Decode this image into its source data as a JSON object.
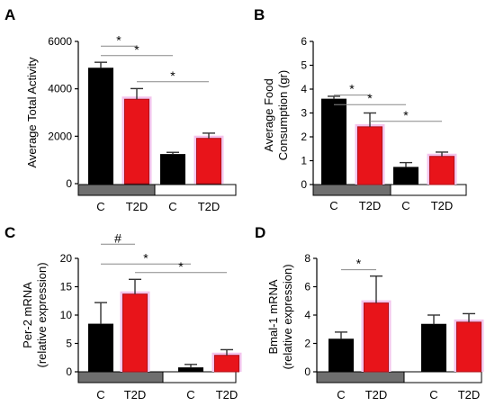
{
  "colors": {
    "control": "#000000",
    "t2d": "#e8141a",
    "t2d_stroke": "#b0101a",
    "t2d_halo": "#f3c4ec",
    "group_dark": "#6f6f6f",
    "group_light": "#ffffff"
  },
  "chart_data": [
    {
      "panel": "A",
      "type": "bar",
      "categories": [
        "C",
        "T2D",
        "C",
        "T2D"
      ],
      "values": [
        4870,
        3560,
        1230,
        1910
      ],
      "errors": [
        250,
        450,
        90,
        220
      ],
      "bar_colors": [
        "control",
        "t2d",
        "control",
        "t2d"
      ],
      "ylabel": [
        "Average Total Activity"
      ],
      "ylim": [
        0,
        6000
      ],
      "yticks": [
        0,
        2000,
        4000,
        6000
      ],
      "group_bars": [
        "dark",
        "light"
      ],
      "significance": [
        {
          "from": 0,
          "to": 1,
          "y": 5800,
          "label": "*"
        },
        {
          "from": 0,
          "to": 2,
          "y": 5400,
          "label": "*"
        },
        {
          "from": 1,
          "to": 3,
          "y": 4300,
          "label": "*"
        }
      ]
    },
    {
      "panel": "B",
      "type": "bar",
      "categories": [
        "C",
        "T2D",
        "C",
        "T2D"
      ],
      "values": [
        3.58,
        2.42,
        0.72,
        1.18
      ],
      "errors": [
        0.12,
        0.58,
        0.2,
        0.18
      ],
      "bar_colors": [
        "control",
        "t2d",
        "control",
        "t2d"
      ],
      "ylabel": [
        "Average Food",
        "Consumption (gr)"
      ],
      "ylim": [
        0,
        6
      ],
      "yticks": [
        0,
        1,
        2,
        3,
        4,
        5,
        6
      ],
      "group_bars": [
        "dark",
        "light"
      ],
      "significance": [
        {
          "from": 0,
          "to": 1,
          "y": 3.75,
          "label": "*"
        },
        {
          "from": 0,
          "to": 2,
          "y": 3.35,
          "label": "*"
        },
        {
          "from": 1,
          "to": 3,
          "y": 2.65,
          "label": "*"
        }
      ]
    },
    {
      "panel": "C",
      "type": "bar",
      "categories": [
        "C",
        "T2D",
        "C",
        "T2D"
      ],
      "values": [
        8.4,
        13.7,
        0.7,
        2.9
      ],
      "errors": [
        3.8,
        2.6,
        0.6,
        1.0
      ],
      "bar_colors": [
        "control",
        "t2d",
        "control",
        "t2d"
      ],
      "ylabel": [
        "Per-2 mRNA",
        "(relative expression)"
      ],
      "ylim": [
        0,
        20
      ],
      "yticks": [
        0,
        5,
        10,
        15,
        20
      ],
      "group_bars": [
        "dark",
        "light"
      ],
      "significance": [
        {
          "from": 0,
          "to": 1,
          "y": 22.5,
          "label": "#"
        },
        {
          "from": 0,
          "to": 2,
          "y": 19.0,
          "label": "*"
        },
        {
          "from": 1,
          "to": 3,
          "y": 17.5,
          "label": "*"
        }
      ]
    },
    {
      "panel": "D",
      "type": "bar",
      "categories": [
        "C",
        "T2D",
        "C",
        "T2D"
      ],
      "values": [
        2.3,
        4.85,
        3.35,
        3.5
      ],
      "errors": [
        0.5,
        1.9,
        0.65,
        0.6
      ],
      "bar_colors": [
        "control",
        "t2d",
        "control",
        "t2d"
      ],
      "ylabel": [
        "Bmal-1 mRNA",
        "(relative expression)"
      ],
      "ylim": [
        0,
        8
      ],
      "yticks": [
        0,
        2,
        4,
        6,
        8
      ],
      "group_bars": [
        "dark",
        "light"
      ],
      "significance": [
        {
          "from": 0,
          "to": 1,
          "y": 7.2,
          "label": "*"
        }
      ]
    }
  ]
}
